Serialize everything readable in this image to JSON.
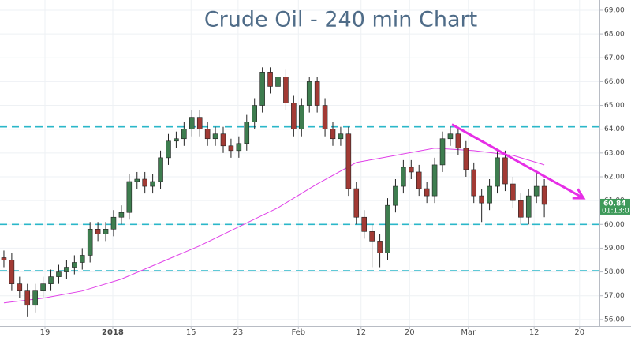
{
  "chart_data": {
    "type": "candlestick",
    "title": "Crude Oil - 240 min Chart",
    "open": [
      58.6,
      58.5,
      57.5,
      57.2,
      56.6,
      57.2,
      57.5,
      57.8,
      58.0,
      58.2,
      58.4,
      58.7,
      59.8,
      59.6,
      59.8,
      60.3,
      60.5,
      61.8,
      61.9,
      61.6,
      61.8,
      62.8,
      63.5,
      63.6,
      64.0,
      64.5,
      64.0,
      63.6,
      63.8,
      63.3,
      63.1,
      63.4,
      64.3,
      65.0,
      66.4,
      65.8,
      66.2,
      65.1,
      64.0,
      65.0,
      66.0,
      65.0,
      64.0,
      63.6,
      63.8,
      61.5,
      60.3,
      59.7,
      59.3,
      58.8,
      60.8,
      61.6,
      62.4,
      62.2,
      61.5,
      61.2,
      62.5,
      63.6,
      63.8,
      63.2,
      62.3,
      61.2,
      60.9,
      61.6,
      62.8,
      61.7,
      61.0,
      60.3,
      61.2,
      61.6
    ],
    "high": [
      58.9,
      58.8,
      57.8,
      57.5,
      57.5,
      57.8,
      58.1,
      58.3,
      58.5,
      58.7,
      59.0,
      60.1,
      60.1,
      60.1,
      60.6,
      60.8,
      62.1,
      62.2,
      62.2,
      62.1,
      63.1,
      63.8,
      63.9,
      64.3,
      64.8,
      64.8,
      64.3,
      64.1,
      64.1,
      63.6,
      63.7,
      64.6,
      65.3,
      66.6,
      66.6,
      66.5,
      66.5,
      65.4,
      65.3,
      66.2,
      66.2,
      65.3,
      64.3,
      64.1,
      64.1,
      61.8,
      60.6,
      60.0,
      59.6,
      61.1,
      61.9,
      62.7,
      62.7,
      62.5,
      61.8,
      62.8,
      63.9,
      64.1,
      64.1,
      63.5,
      62.6,
      61.5,
      61.9,
      63.1,
      63.1,
      62.0,
      61.3,
      61.5,
      62.2,
      61.9
    ],
    "low": [
      58.2,
      57.2,
      56.9,
      56.1,
      56.3,
      56.9,
      57.2,
      57.5,
      57.7,
      57.9,
      58.1,
      58.4,
      59.3,
      59.3,
      59.5,
      60.0,
      60.2,
      61.5,
      61.3,
      61.3,
      61.5,
      62.5,
      63.2,
      63.3,
      63.7,
      63.7,
      63.3,
      63.3,
      63.0,
      62.8,
      62.8,
      63.1,
      64.0,
      64.7,
      65.5,
      65.5,
      64.8,
      63.7,
      63.7,
      64.7,
      64.7,
      63.7,
      63.3,
      63.3,
      61.2,
      60.0,
      59.4,
      58.2,
      58.2,
      58.5,
      60.5,
      61.3,
      61.9,
      61.2,
      60.9,
      60.9,
      62.2,
      63.3,
      62.9,
      62.0,
      60.9,
      60.1,
      60.6,
      61.3,
      61.4,
      60.7,
      60.0,
      60.0,
      60.9,
      60.3
    ],
    "close": [
      58.5,
      57.5,
      57.2,
      56.6,
      57.2,
      57.5,
      57.8,
      58.0,
      58.2,
      58.4,
      58.7,
      59.8,
      59.6,
      59.8,
      60.3,
      60.5,
      61.8,
      61.9,
      61.6,
      61.8,
      62.8,
      63.5,
      63.6,
      64.0,
      64.5,
      64.0,
      63.6,
      63.8,
      63.3,
      63.1,
      63.4,
      64.3,
      65.0,
      66.4,
      65.8,
      66.2,
      65.1,
      64.0,
      65.0,
      66.0,
      65.0,
      64.0,
      63.6,
      63.8,
      61.5,
      60.3,
      59.7,
      59.3,
      58.8,
      60.8,
      61.6,
      62.4,
      62.2,
      61.5,
      61.2,
      62.5,
      63.6,
      63.8,
      63.2,
      62.3,
      61.2,
      60.9,
      61.6,
      62.8,
      61.7,
      61.0,
      60.3,
      61.2,
      61.6,
      60.84
    ],
    "up_color": "#3e7d4f",
    "down_color": "#a23a34",
    "moving_average": {
      "color": "#e040e8",
      "x": [
        0,
        5,
        10,
        15,
        20,
        25,
        30,
        35,
        40,
        45,
        50,
        55,
        60,
        65,
        69
      ],
      "values": [
        56.7,
        56.9,
        57.2,
        57.7,
        58.4,
        59.1,
        59.9,
        60.7,
        61.7,
        62.6,
        62.9,
        63.2,
        63.1,
        62.9,
        62.5
      ]
    },
    "levels": {
      "color": "#2bb7c9",
      "values": [
        64.1,
        60.0,
        58.05
      ]
    },
    "trendline": {
      "color": "#e62ee6",
      "x": [
        57.2,
        74.0
      ],
      "values": [
        64.2,
        61.1
      ]
    },
    "last_price": {
      "value": 60.84,
      "countdown": "01:13:0",
      "color": "#3e9a5a"
    },
    "xlim": [
      -0.5,
      76.04
    ],
    "ylim": [
      55.73,
      69.43
    ],
    "xticks": [
      {
        "value": 5.24,
        "label": "19"
      },
      {
        "value": 13.9,
        "label": "2018"
      },
      {
        "value": 23.9,
        "label": "15"
      },
      {
        "value": 29.9,
        "label": "23"
      },
      {
        "value": 37.6,
        "label": "Feb"
      },
      {
        "value": 45.6,
        "label": "12"
      },
      {
        "value": 51.8,
        "label": "20"
      },
      {
        "value": 59.3,
        "label": "Mar"
      },
      {
        "value": 67.7,
        "label": "12"
      },
      {
        "value": 73.5,
        "label": "20"
      }
    ],
    "yticks": [
      {
        "value": 56,
        "label": "56.00"
      },
      {
        "value": 57,
        "label": "57.00"
      },
      {
        "value": 58,
        "label": "58.00"
      },
      {
        "value": 59,
        "label": "59.00"
      },
      {
        "value": 60,
        "label": "60.00"
      },
      {
        "value": 61,
        "label": "61.00"
      },
      {
        "value": 62,
        "label": "62.00"
      },
      {
        "value": 63,
        "label": "63.00"
      },
      {
        "value": 64,
        "label": "64.00"
      },
      {
        "value": 65,
        "label": "65.00"
      },
      {
        "value": 66,
        "label": "66.00"
      },
      {
        "value": 67,
        "label": "67.00"
      },
      {
        "value": 68,
        "label": "68.00"
      },
      {
        "value": 69,
        "label": "69.00"
      }
    ],
    "grid": true
  }
}
